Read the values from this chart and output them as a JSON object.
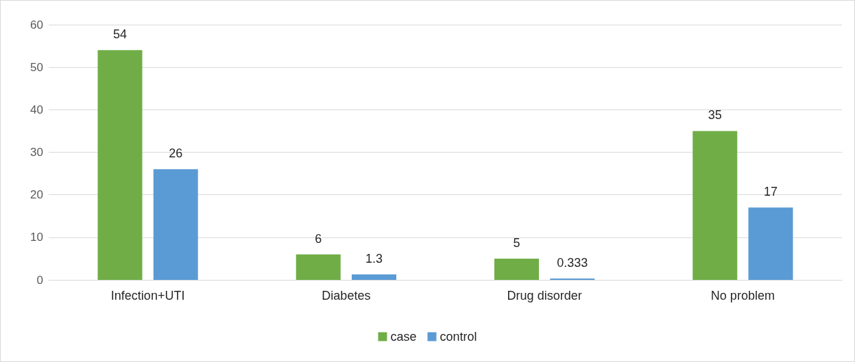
{
  "chart_data": {
    "type": "bar",
    "categories": [
      "Infection+UTI",
      "Diabetes",
      "Drug disorder",
      "No problem"
    ],
    "series": [
      {
        "name": "case",
        "color": "#70ad47",
        "values": [
          54,
          6,
          5,
          35
        ]
      },
      {
        "name": "control",
        "color": "#5b9bd5",
        "values": [
          26,
          1.3,
          0.333,
          17
        ]
      }
    ],
    "ylim": [
      0,
      60
    ],
    "yticks": [
      0,
      10,
      20,
      30,
      40,
      50,
      60
    ],
    "grid": "y",
    "legend": "bottom",
    "data_labels": true
  }
}
